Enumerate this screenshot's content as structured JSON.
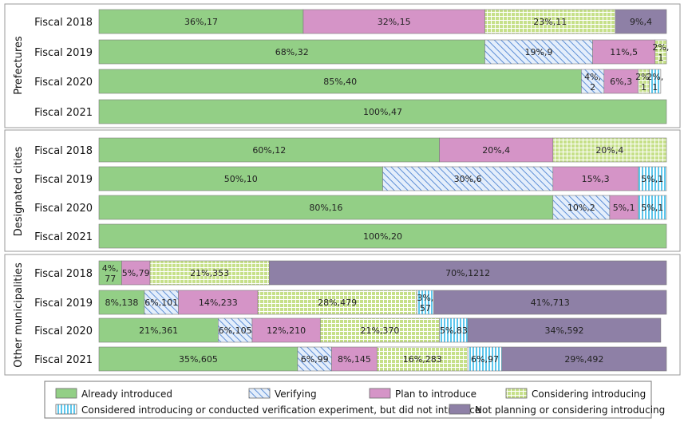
{
  "chart_data": {
    "type": "bar",
    "orientation": "horizontal",
    "stacked": "100%",
    "xlim": [
      0,
      100
    ],
    "grid": false,
    "legend_position": "bottom",
    "series": [
      {
        "name": "Already introduced",
        "color": "#93cf86",
        "pattern": "solid"
      },
      {
        "name": "Verifying",
        "color": "#8cb3e8",
        "pattern": "diagonal"
      },
      {
        "name": "Plan to introduce",
        "color": "#d594c7",
        "pattern": "solid"
      },
      {
        "name": "Considering introducing",
        "color": "#c6e089",
        "pattern": "grid"
      },
      {
        "name": "Considered introducing or conducted verification experiment, but did not introduce",
        "color": "#7fd4f0",
        "pattern": "vertical"
      },
      {
        "name": "Not planning or considering introducing",
        "color": "#8e80a6",
        "pattern": "solid"
      }
    ],
    "groups": [
      {
        "name": "Prefectures",
        "rows": [
          {
            "category": "Fiscal 2018",
            "segments": [
              {
                "series": 0,
                "percent": 36,
                "count": 17,
                "label": "36%,17"
              },
              {
                "series": 2,
                "percent": 32,
                "count": 15,
                "label": "32%,15"
              },
              {
                "series": 3,
                "percent": 23,
                "count": 11,
                "label": "23%,11"
              },
              {
                "series": 5,
                "percent": 9,
                "count": 4,
                "label": "9%,4"
              }
            ]
          },
          {
            "category": "Fiscal 2019",
            "segments": [
              {
                "series": 0,
                "percent": 68,
                "count": 32,
                "label": "68%,32"
              },
              {
                "series": 1,
                "percent": 19,
                "count": 9,
                "label": "19%,9"
              },
              {
                "series": 2,
                "percent": 11,
                "count": 5,
                "label": "11%,5"
              },
              {
                "series": 3,
                "percent": 2,
                "count": 1,
                "label": "2%,1"
              }
            ]
          },
          {
            "category": "Fiscal 2020",
            "segments": [
              {
                "series": 0,
                "percent": 85,
                "count": 40,
                "label": "85%,40"
              },
              {
                "series": 1,
                "percent": 4,
                "count": 2,
                "label": "4%,2"
              },
              {
                "series": 2,
                "percent": 6,
                "count": 3,
                "label": "6%,3"
              },
              {
                "series": 3,
                "percent": 2,
                "count": 1,
                "label": "2%,1"
              },
              {
                "series": 4,
                "percent": 2,
                "count": 1,
                "label": "2%,1"
              }
            ]
          },
          {
            "category": "Fiscal 2021",
            "segments": [
              {
                "series": 0,
                "percent": 100,
                "count": 47,
                "label": "100%,47"
              }
            ]
          }
        ]
      },
      {
        "name": "Designated cities",
        "rows": [
          {
            "category": "Fiscal 2018",
            "segments": [
              {
                "series": 0,
                "percent": 60,
                "count": 12,
                "label": "60%,12"
              },
              {
                "series": 2,
                "percent": 20,
                "count": 4,
                "label": "20%,4"
              },
              {
                "series": 3,
                "percent": 20,
                "count": 4,
                "label": "20%,4"
              }
            ]
          },
          {
            "category": "Fiscal 2019",
            "segments": [
              {
                "series": 0,
                "percent": 50,
                "count": 10,
                "label": "50%,10"
              },
              {
                "series": 1,
                "percent": 30,
                "count": 6,
                "label": "30%,6"
              },
              {
                "series": 2,
                "percent": 15,
                "count": 3,
                "label": "15%,3"
              },
              {
                "series": 4,
                "percent": 5,
                "count": 1,
                "label": "5%,1"
              }
            ]
          },
          {
            "category": "Fiscal 2020",
            "segments": [
              {
                "series": 0,
                "percent": 80,
                "count": 16,
                "label": "80%,16"
              },
              {
                "series": 1,
                "percent": 10,
                "count": 2,
                "label": "10%,2"
              },
              {
                "series": 2,
                "percent": 5,
                "count": 1,
                "label": "5%,1"
              },
              {
                "series": 4,
                "percent": 5,
                "count": 1,
                "label": "5%,1"
              }
            ]
          },
          {
            "category": "Fiscal 2021",
            "segments": [
              {
                "series": 0,
                "percent": 100,
                "count": 20,
                "label": "100%,20"
              }
            ]
          }
        ]
      },
      {
        "name": "Other municipalities",
        "rows": [
          {
            "category": "Fiscal 2018",
            "segments": [
              {
                "series": 0,
                "percent": 4,
                "count": 77,
                "label": "4%,77"
              },
              {
                "series": 2,
                "percent": 5,
                "count": 79,
                "label": "5%,79"
              },
              {
                "series": 3,
                "percent": 21,
                "count": 353,
                "label": "21%,353"
              },
              {
                "series": 5,
                "percent": 70,
                "count": 1212,
                "label": "70%,1212"
              }
            ]
          },
          {
            "category": "Fiscal 2019",
            "segments": [
              {
                "series": 0,
                "percent": 8,
                "count": 138,
                "label": "8%,138"
              },
              {
                "series": 1,
                "percent": 6,
                "count": 101,
                "label": "6%,101"
              },
              {
                "series": 2,
                "percent": 14,
                "count": 233,
                "label": "14%,233"
              },
              {
                "series": 3,
                "percent": 28,
                "count": 479,
                "label": "28%,479"
              },
              {
                "series": 4,
                "percent": 3,
                "count": 57,
                "label": "3%,57"
              },
              {
                "series": 5,
                "percent": 41,
                "count": 713,
                "label": "41%,713"
              }
            ]
          },
          {
            "category": "Fiscal 2020",
            "segments": [
              {
                "series": 0,
                "percent": 21,
                "count": 361,
                "label": "21%,361"
              },
              {
                "series": 1,
                "percent": 6,
                "count": 105,
                "label": "6%,105"
              },
              {
                "series": 2,
                "percent": 12,
                "count": 210,
                "label": "12%,210"
              },
              {
                "series": 3,
                "percent": 21,
                "count": 370,
                "label": "21%,370"
              },
              {
                "series": 4,
                "percent": 5,
                "count": 83,
                "label": "5%,83"
              },
              {
                "series": 5,
                "percent": 34,
                "count": 592,
                "label": "34%,592"
              }
            ]
          },
          {
            "category": "Fiscal 2021",
            "segments": [
              {
                "series": 0,
                "percent": 35,
                "count": 605,
                "label": "35%,605"
              },
              {
                "series": 1,
                "percent": 6,
                "count": 99,
                "label": "6%,99"
              },
              {
                "series": 2,
                "percent": 8,
                "count": 145,
                "label": "8%,145"
              },
              {
                "series": 3,
                "percent": 16,
                "count": 283,
                "label": "16%,283"
              },
              {
                "series": 4,
                "percent": 6,
                "count": 97,
                "label": "6%,97"
              },
              {
                "series": 5,
                "percent": 29,
                "count": 492,
                "label": "29%,492"
              }
            ]
          }
        ]
      }
    ]
  }
}
